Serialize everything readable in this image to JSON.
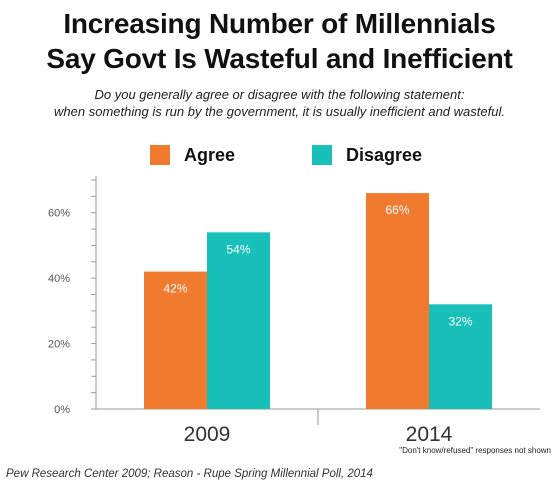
{
  "title_lines": [
    "Increasing Number of Millennials",
    "Say Govt Is Wasteful and Inefficient"
  ],
  "subtitle_lines": [
    "Do you generally agree or disagree with the following statement:",
    "when something is run by the government, it is usually inefficient and wasteful."
  ],
  "colors": {
    "agree": "#F07B2E",
    "disagree": "#19BFB9",
    "axis": "#9a9a9a",
    "tick_label": "#555555",
    "bar_label": "#ffffff"
  },
  "chart_data": {
    "type": "bar",
    "categories": [
      "2009",
      "2014"
    ],
    "series": [
      {
        "name": "Agree",
        "values": [
          42,
          66
        ],
        "labels": [
          "42%",
          "66%"
        ]
      },
      {
        "name": "Disagree",
        "values": [
          54,
          32
        ],
        "labels": [
          "54%",
          "32%"
        ]
      }
    ],
    "ylim": [
      0,
      70
    ],
    "yticks": [
      0,
      20,
      40,
      60
    ],
    "ytick_labels": [
      "0%",
      "20%",
      "40%",
      "60%"
    ],
    "legend_position": "top",
    "grid": false
  },
  "footnote": "\"Don't know/refused\" responses not shown",
  "source": "Pew Research Center 2009; Reason - Rupe Spring Millennial Poll, 2014"
}
